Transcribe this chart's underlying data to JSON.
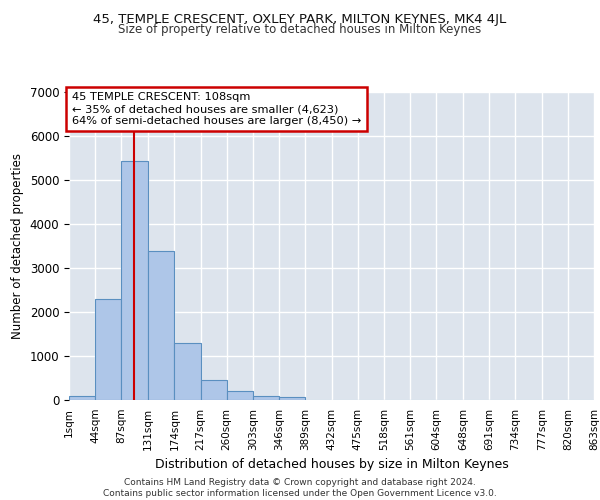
{
  "title_line1": "45, TEMPLE CRESCENT, OXLEY PARK, MILTON KEYNES, MK4 4JL",
  "title_line2": "Size of property relative to detached houses in Milton Keynes",
  "xlabel": "Distribution of detached houses by size in Milton Keynes",
  "ylabel": "Number of detached properties",
  "bin_edges": [
    1,
    44,
    87,
    131,
    174,
    217,
    260,
    303,
    346,
    389,
    432,
    475,
    518,
    561,
    604,
    648,
    691,
    734,
    777,
    820,
    863
  ],
  "bar_heights": [
    100,
    2300,
    5450,
    3400,
    1300,
    450,
    200,
    100,
    60,
    0,
    0,
    0,
    0,
    0,
    0,
    0,
    0,
    0,
    0,
    0
  ],
  "bar_color": "#aec6e8",
  "bar_edge_color": "#5a8fc0",
  "bar_edge_width": 0.8,
  "red_line_x": 108,
  "annotation_text": "45 TEMPLE CRESCENT: 108sqm\n← 35% of detached houses are smaller (4,623)\n64% of semi-detached houses are larger (8,450) →",
  "annotation_box_color": "#ffffff",
  "annotation_box_edge_color": "#cc0000",
  "ylim": [
    0,
    7000
  ],
  "yticks": [
    0,
    1000,
    2000,
    3000,
    4000,
    5000,
    6000,
    7000
  ],
  "background_color": "#dde4ed",
  "grid_color": "#ffffff",
  "footer_line1": "Contains HM Land Registry data © Crown copyright and database right 2024.",
  "footer_line2": "Contains public sector information licensed under the Open Government Licence v3.0."
}
